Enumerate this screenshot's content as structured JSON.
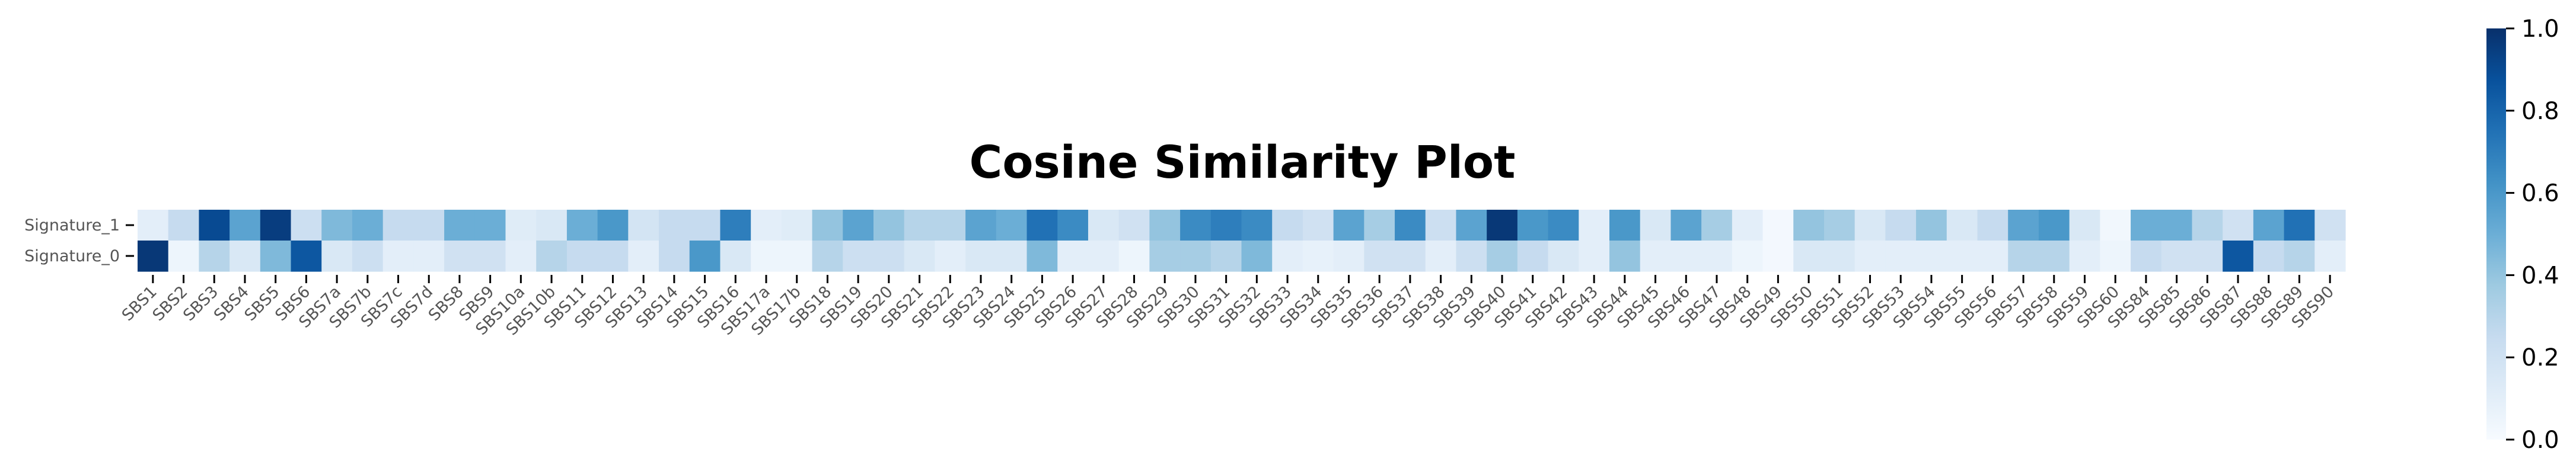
{
  "chart_data": {
    "type": "heatmap",
    "title": "Cosine Similarity Plot",
    "xlabel": "",
    "ylabel": "",
    "rows": [
      "Signature_1",
      "Signature_0"
    ],
    "columns": [
      "SBS1",
      "SBS2",
      "SBS3",
      "SBS4",
      "SBS5",
      "SBS6",
      "SBS7a",
      "SBS7b",
      "SBS7c",
      "SBS7d",
      "SBS8",
      "SBS9",
      "SBS10a",
      "SBS10b",
      "SBS11",
      "SBS12",
      "SBS13",
      "SBS14",
      "SBS15",
      "SBS16",
      "SBS17a",
      "SBS17b",
      "SBS18",
      "SBS19",
      "SBS20",
      "SBS21",
      "SBS22",
      "SBS23",
      "SBS24",
      "SBS25",
      "SBS26",
      "SBS27",
      "SBS28",
      "SBS29",
      "SBS30",
      "SBS31",
      "SBS32",
      "SBS33",
      "SBS34",
      "SBS35",
      "SBS36",
      "SBS37",
      "SBS38",
      "SBS39",
      "SBS40",
      "SBS41",
      "SBS42",
      "SBS43",
      "SBS44",
      "SBS45",
      "SBS46",
      "SBS47",
      "SBS48",
      "SBS49",
      "SBS50",
      "SBS51",
      "SBS52",
      "SBS53",
      "SBS54",
      "SBS55",
      "SBS56",
      "SBS57",
      "SBS58",
      "SBS59",
      "SBS60",
      "SBS84",
      "SBS85",
      "SBS86",
      "SBS87",
      "SBS88",
      "SBS89",
      "SBS90"
    ],
    "values": [
      [
        0.1,
        0.25,
        0.9,
        0.55,
        0.95,
        0.22,
        0.45,
        0.5,
        0.25,
        0.25,
        0.5,
        0.5,
        0.12,
        0.15,
        0.5,
        0.6,
        0.18,
        0.25,
        0.25,
        0.7,
        0.1,
        0.12,
        0.4,
        0.55,
        0.4,
        0.3,
        0.3,
        0.55,
        0.5,
        0.75,
        0.65,
        0.15,
        0.2,
        0.4,
        0.65,
        0.7,
        0.65,
        0.25,
        0.2,
        0.55,
        0.35,
        0.65,
        0.22,
        0.55,
        0.97,
        0.6,
        0.65,
        0.1,
        0.6,
        0.15,
        0.55,
        0.35,
        0.1,
        0.02,
        0.4,
        0.35,
        0.15,
        0.25,
        0.4,
        0.15,
        0.25,
        0.55,
        0.6,
        0.15,
        0.03,
        0.5,
        0.5,
        0.3,
        0.2,
        0.55,
        0.75,
        0.2
      ],
      [
        0.97,
        0.05,
        0.3,
        0.15,
        0.45,
        0.85,
        0.15,
        0.22,
        0.1,
        0.1,
        0.2,
        0.2,
        0.1,
        0.3,
        0.25,
        0.25,
        0.1,
        0.25,
        0.6,
        0.15,
        0.05,
        0.05,
        0.3,
        0.22,
        0.22,
        0.15,
        0.1,
        0.15,
        0.15,
        0.45,
        0.1,
        0.1,
        0.05,
        0.35,
        0.35,
        0.3,
        0.45,
        0.1,
        0.08,
        0.1,
        0.2,
        0.2,
        0.1,
        0.22,
        0.35,
        0.25,
        0.15,
        0.1,
        0.4,
        0.1,
        0.1,
        0.1,
        0.05,
        0.02,
        0.15,
        0.15,
        0.1,
        0.1,
        0.1,
        0.1,
        0.1,
        0.3,
        0.3,
        0.1,
        0.05,
        0.25,
        0.2,
        0.2,
        0.85,
        0.25,
        0.3,
        0.1
      ]
    ],
    "vmin": 0.0,
    "vmax": 1.0,
    "colormap": "Blues",
    "colorbar_ticks": [
      "0.0",
      "0.2",
      "0.4",
      "0.6",
      "0.8",
      "1.0"
    ],
    "grid": false,
    "legend": "colorbar-right"
  }
}
